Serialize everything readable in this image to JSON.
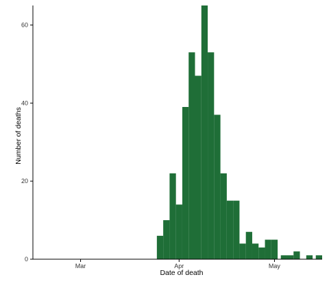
{
  "chart_data": {
    "type": "bar",
    "title": "",
    "xlabel": "Date of death",
    "ylabel": "Number of deaths",
    "x_tick_labels": [
      {
        "label": "Mar",
        "date": "2020-03-01"
      },
      {
        "label": "Apr",
        "date": "2020-04-01"
      },
      {
        "label": "May",
        "date": "2020-05-01"
      }
    ],
    "y_ticks": [
      0,
      20,
      40,
      60
    ],
    "x_range": [
      "2020-02-15",
      "2020-05-16"
    ],
    "ylim": [
      0,
      65
    ],
    "grid": false,
    "legend": "none",
    "bar_color": "#1f6e37",
    "bins": [
      {
        "date": "2020-03-25",
        "count": 6
      },
      {
        "date": "2020-03-27",
        "count": 10
      },
      {
        "date": "2020-03-29",
        "count": 22
      },
      {
        "date": "2020-03-31",
        "count": 14
      },
      {
        "date": "2020-04-02",
        "count": 39
      },
      {
        "date": "2020-04-04",
        "count": 53
      },
      {
        "date": "2020-04-06",
        "count": 47
      },
      {
        "date": "2020-04-08",
        "count": 65
      },
      {
        "date": "2020-04-10",
        "count": 53
      },
      {
        "date": "2020-04-12",
        "count": 37
      },
      {
        "date": "2020-04-14",
        "count": 22
      },
      {
        "date": "2020-04-16",
        "count": 15
      },
      {
        "date": "2020-04-18",
        "count": 15
      },
      {
        "date": "2020-04-20",
        "count": 4
      },
      {
        "date": "2020-04-22",
        "count": 7
      },
      {
        "date": "2020-04-24",
        "count": 4
      },
      {
        "date": "2020-04-26",
        "count": 3
      },
      {
        "date": "2020-04-28",
        "count": 5
      },
      {
        "date": "2020-04-30",
        "count": 5
      },
      {
        "date": "2020-05-03",
        "count": 1
      },
      {
        "date": "2020-05-05",
        "count": 1
      },
      {
        "date": "2020-05-07",
        "count": 2
      },
      {
        "date": "2020-05-11",
        "count": 1
      },
      {
        "date": "2020-05-14",
        "count": 1
      }
    ]
  }
}
